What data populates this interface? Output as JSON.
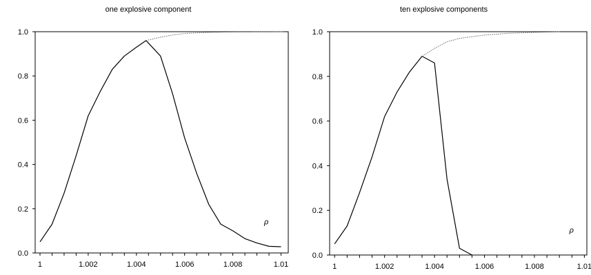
{
  "chart_data": [
    {
      "type": "line",
      "title": "one explosive component",
      "xlabel": "",
      "ylabel": "",
      "annotation": "ρ",
      "xlim": [
        0.9998,
        1.0103
      ],
      "ylim": [
        0,
        1
      ],
      "grid": false,
      "x_ticks": [
        "1",
        "1.002",
        "1.004",
        "1.006",
        "1.008",
        "1.01"
      ],
      "y_ticks": [
        "0.0",
        "0.2",
        "0.4",
        "0.6",
        "0.8",
        "1.0"
      ],
      "series": [
        {
          "style": "solid",
          "points": [
            [
              1.0,
              0.05
            ],
            [
              1.0005,
              0.13
            ],
            [
              1.001,
              0.27
            ],
            [
              1.0015,
              0.44
            ],
            [
              1.002,
              0.62
            ],
            [
              1.0025,
              0.73
            ],
            [
              1.003,
              0.83
            ],
            [
              1.0035,
              0.89
            ],
            [
              1.004,
              0.93
            ],
            [
              1.0044,
              0.96
            ],
            [
              1.005,
              0.89
            ],
            [
              1.0055,
              0.72
            ],
            [
              1.006,
              0.52
            ],
            [
              1.0065,
              0.36
            ],
            [
              1.007,
              0.22
            ],
            [
              1.0075,
              0.13
            ],
            [
              1.008,
              0.1
            ],
            [
              1.0085,
              0.065
            ],
            [
              1.009,
              0.045
            ],
            [
              1.0095,
              0.03
            ],
            [
              1.01,
              0.028
            ]
          ]
        },
        {
          "style": "dotted",
          "points": [
            [
              1.0044,
              0.96
            ],
            [
              1.005,
              0.975
            ],
            [
              1.0055,
              0.985
            ],
            [
              1.006,
              0.992
            ],
            [
              1.007,
              0.997
            ],
            [
              1.008,
              0.999
            ],
            [
              1.0101,
              1.0
            ]
          ]
        }
      ]
    },
    {
      "type": "line",
      "title": "ten explosive components",
      "xlabel": "",
      "ylabel": "",
      "annotation": "ρ",
      "xlim": [
        0.9998,
        1.0101
      ],
      "ylim": [
        0,
        1
      ],
      "grid": false,
      "x_ticks": [
        "1",
        "1.002",
        "1.004",
        "1.006",
        "1.008",
        "1.01"
      ],
      "y_ticks": [
        "0.0",
        "0.2",
        "0.4",
        "0.6",
        "0.8",
        "1.0"
      ],
      "series": [
        {
          "style": "solid",
          "points": [
            [
              1.0,
              0.05
            ],
            [
              1.0005,
              0.13
            ],
            [
              1.001,
              0.28
            ],
            [
              1.0015,
              0.44
            ],
            [
              1.002,
              0.62
            ],
            [
              1.0025,
              0.73
            ],
            [
              1.003,
              0.82
            ],
            [
              1.0035,
              0.89
            ],
            [
              1.004,
              0.86
            ],
            [
              1.0045,
              0.34
            ],
            [
              1.005,
              0.03
            ],
            [
              1.0055,
              0.0
            ]
          ]
        },
        {
          "style": "dotted",
          "points": [
            [
              1.0035,
              0.89
            ],
            [
              1.004,
              0.925
            ],
            [
              1.0045,
              0.955
            ],
            [
              1.005,
              0.97
            ],
            [
              1.006,
              0.985
            ],
            [
              1.007,
              0.993
            ],
            [
              1.008,
              0.997
            ],
            [
              1.009,
              1.0
            ]
          ]
        }
      ]
    }
  ]
}
